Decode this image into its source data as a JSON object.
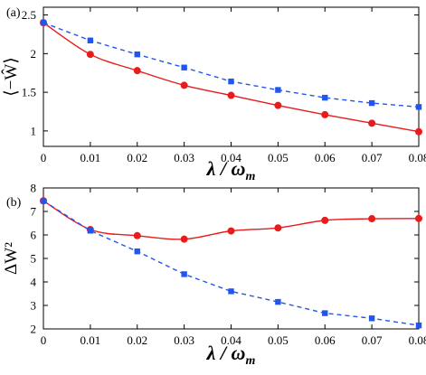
{
  "chart_data": [
    {
      "type": "line",
      "panel_label": "(a)",
      "xlabel": "λ / ω_m",
      "ylabel": "⟨−Ŵ⟩",
      "xlim": [
        0,
        0.08
      ],
      "ylim": [
        0.8,
        2.6
      ],
      "xticks": [
        "0",
        "0.01",
        "0.02",
        "0.03",
        "0.04",
        "0.05",
        "0.06",
        "0.07",
        "0.08"
      ],
      "yticks": [
        "1",
        "1.5",
        "2",
        "2.5"
      ],
      "grid": false,
      "x": [
        0,
        0.01,
        0.02,
        0.03,
        0.04,
        0.05,
        0.06,
        0.07,
        0.08
      ],
      "series": [
        {
          "color": "#e81c1c",
          "marker": "circle",
          "line": "solid",
          "values": [
            2.4,
            1.99,
            1.78,
            1.59,
            1.46,
            1.33,
            1.21,
            1.1,
            0.99
          ]
        },
        {
          "color": "#2255ee",
          "marker": "square",
          "line": "dashed",
          "values": [
            2.4,
            2.17,
            1.99,
            1.82,
            1.64,
            1.53,
            1.43,
            1.36,
            1.31
          ]
        }
      ]
    },
    {
      "type": "line",
      "panel_label": "(b)",
      "xlabel": "λ / ω_m",
      "ylabel": "ΔW²",
      "xlim": [
        0,
        0.08
      ],
      "ylim": [
        2,
        8
      ],
      "xticks": [
        "0",
        "0.01",
        "0.02",
        "0.03",
        "0.04",
        "0.05",
        "0.06",
        "0.07",
        "0.08"
      ],
      "yticks": [
        "2",
        "3",
        "4",
        "5",
        "6",
        "7",
        "8"
      ],
      "grid": false,
      "x": [
        0,
        0.01,
        0.02,
        0.03,
        0.04,
        0.05,
        0.06,
        0.07,
        0.08
      ],
      "series": [
        {
          "color": "#e81c1c",
          "marker": "circle",
          "line": "solid",
          "values": [
            7.45,
            6.23,
            5.97,
            5.82,
            6.17,
            6.3,
            6.62,
            6.69,
            6.7
          ]
        },
        {
          "color": "#2255ee",
          "marker": "square",
          "line": "dashed",
          "values": [
            7.45,
            6.18,
            5.3,
            4.33,
            3.6,
            3.15,
            2.67,
            2.45,
            2.15
          ]
        }
      ]
    }
  ]
}
